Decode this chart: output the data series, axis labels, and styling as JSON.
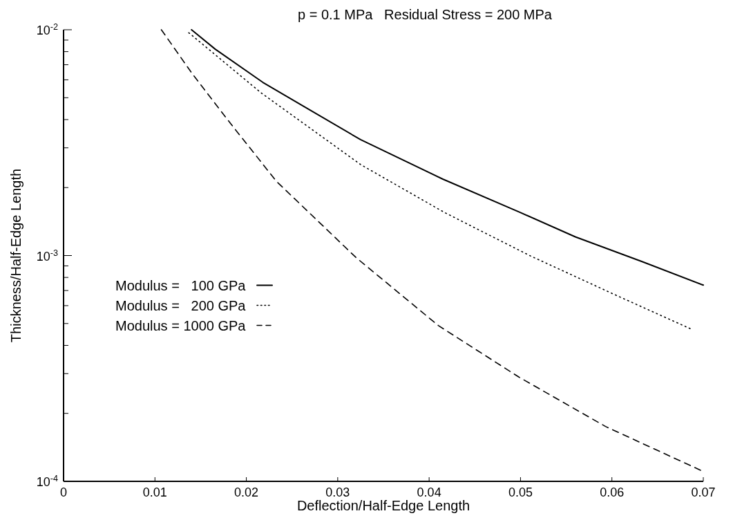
{
  "chart_data": {
    "type": "line",
    "title": "p = 0.1 MPa   Residual Stress = 200 MPa",
    "xlabel": "Deflection/Half-Edge Length",
    "ylabel": "Thickness/Half-Edge Length",
    "log": "y",
    "grid": false,
    "legend": "left",
    "xlim": [
      0,
      0.07
    ],
    "xticks": [
      0,
      0.01,
      0.02,
      0.03,
      0.04,
      0.05,
      0.06,
      0.07
    ],
    "ylim": [
      0.0001,
      0.01
    ],
    "yticks": [
      {
        "value": 0.0001,
        "label": "10$^{-4}$"
      },
      {
        "value": 0.0002,
        "label": null
      },
      {
        "value": 0.0003,
        "label": null
      },
      {
        "value": 0.0004,
        "label": null
      },
      {
        "value": 0.0005,
        "label": null
      },
      {
        "value": 0.0006,
        "label": null
      },
      {
        "value": 0.0007,
        "label": null
      },
      {
        "value": 0.0008,
        "label": null
      },
      {
        "value": 0.0009,
        "label": null
      },
      {
        "value": 0.001,
        "label": "10$^{-3}$"
      },
      {
        "value": 0.002,
        "label": null
      },
      {
        "value": 0.003,
        "label": null
      },
      {
        "value": 0.004,
        "label": null
      },
      {
        "value": 0.005,
        "label": null
      },
      {
        "value": 0.006,
        "label": null
      },
      {
        "value": 0.007,
        "label": null
      },
      {
        "value": 0.008,
        "label": null
      },
      {
        "value": 0.009,
        "label": null
      },
      {
        "value": 0.01,
        "label": "10$^{-2}$"
      }
    ],
    "series": [
      {
        "name": "Modulus =   100 GPa",
        "color": "#000000",
        "line_style": "solid",
        "x": [
          0.014,
          0.0166,
          0.0218,
          0.027,
          0.0325,
          0.0415,
          0.05,
          0.056,
          0.0633,
          0.07
        ],
        "values": [
          0.01,
          0.0082,
          0.00585,
          0.0044,
          0.00326,
          0.00218,
          0.00155,
          0.00121,
          0.00094,
          0.00074
        ]
      },
      {
        "name": "Modulus =   200 GPa",
        "color": "#000000",
        "line_style": "dotted",
        "x": [
          0.0137,
          0.0216,
          0.0325,
          0.0417,
          0.051,
          0.06,
          0.0688
        ],
        "values": [
          0.0097,
          0.00526,
          0.00253,
          0.00155,
          0.001,
          0.00068,
          0.00047
        ]
      },
      {
        "name": "Modulus = 1000 GPa",
        "color": "#000000",
        "line_style": "dashed",
        "x": [
          0.0107,
          0.0141,
          0.0183,
          0.0233,
          0.032,
          0.041,
          0.0498,
          0.0593,
          0.0697
        ],
        "values": [
          0.01,
          0.00637,
          0.00383,
          0.00213,
          0.00098,
          0.00049,
          0.00029,
          0.000175,
          0.000112
        ]
      }
    ]
  }
}
